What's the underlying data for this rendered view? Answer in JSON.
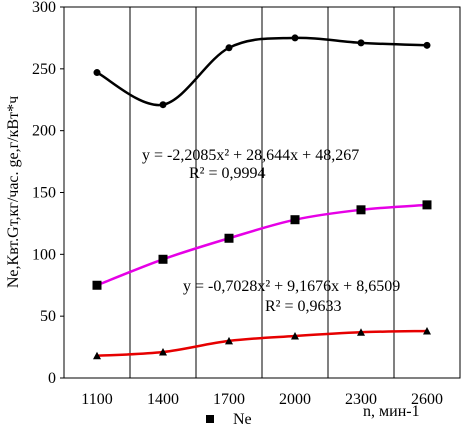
{
  "chart_data": {
    "type": "line",
    "ylabel": "Ne,Квт.Gт,кг/час. ge,г/кВт*ч",
    "xlabel": "n, мин-1",
    "categories": [
      "1100",
      "1400",
      "1700",
      "2000",
      "2300",
      "2600"
    ],
    "y_ticks": [
      "0",
      "50",
      "100",
      "150",
      "200",
      "250",
      "300"
    ],
    "ylim": [
      0,
      300
    ],
    "grid": "vertical",
    "legend": {
      "position": "bottom",
      "marker": "square",
      "label": "Ne"
    },
    "series": [
      {
        "key": "ge",
        "color": "#000000",
        "marker": "circle",
        "values": [
          247,
          221,
          267,
          275,
          271,
          269
        ]
      },
      {
        "key": "Ne",
        "color": "#e600e6",
        "marker": "square",
        "values": [
          75,
          96,
          113,
          128,
          136,
          140
        ]
      },
      {
        "key": "Gt",
        "color": "#e60000",
        "marker": "triangle",
        "values": [
          18,
          21,
          30,
          34,
          37,
          38
        ]
      }
    ],
    "annotations": [
      {
        "line1": "y = -2,2085x² + 28,644x + 48,267",
        "line2": "R² = 0,9994"
      },
      {
        "line1": "y = -0,7028x² + 9,1676x + 8,6509",
        "line2": "R² = 0,9633"
      }
    ]
  }
}
